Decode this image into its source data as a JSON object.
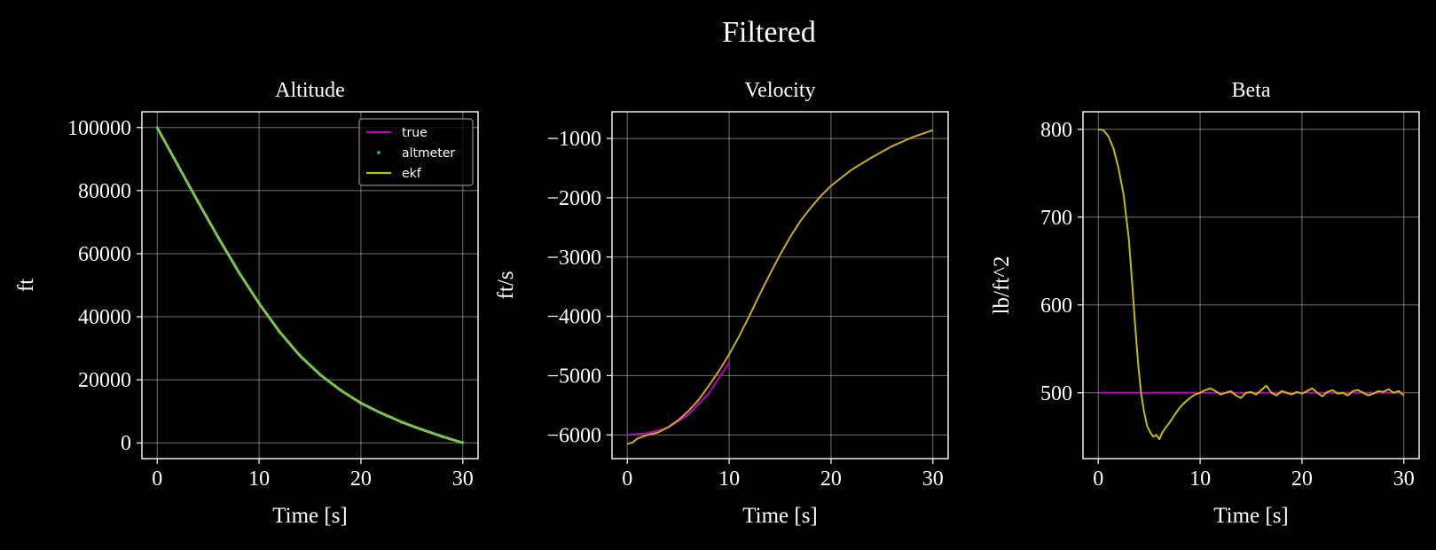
{
  "figure": {
    "title": "Filtered",
    "background": "#000000"
  },
  "colors": {
    "true": "#c000c0",
    "altmeter": "#17becf",
    "ekf": "#bfbf00",
    "grid": "#ffffff"
  },
  "legend": {
    "placement": "top-right",
    "entries": [
      {
        "label": "true",
        "style": "line",
        "color": "#c000c0"
      },
      {
        "label": "altmeter",
        "style": "marker",
        "color": "#17becf"
      },
      {
        "label": "ekf",
        "style": "line",
        "color": "#bfbf00"
      }
    ]
  },
  "chart_data": [
    {
      "type": "line",
      "title": "Altitude",
      "xlabel": "Time [s]",
      "ylabel": "ft",
      "xlim": [
        -1.5,
        31.5
      ],
      "ylim": [
        -5000,
        105000
      ],
      "xticks": [
        0,
        10,
        20,
        30
      ],
      "xtick_labels": [
        "0",
        "10",
        "20",
        "30"
      ],
      "yticks": [
        0,
        20000,
        40000,
        60000,
        80000,
        100000
      ],
      "ytick_labels": [
        "0",
        "20000",
        "40000",
        "60000",
        "80000",
        "100000"
      ],
      "grid": true,
      "legend": "top-right",
      "series": [
        {
          "name": "true",
          "style": "line",
          "color": "#c000c0",
          "x": [
            0,
            2,
            4,
            6,
            8,
            10,
            12,
            14,
            16,
            18,
            20,
            22,
            24,
            26,
            28,
            30
          ],
          "y": [
            100000,
            88200,
            76500,
            65100,
            54200,
            44200,
            35300,
            27700,
            21600,
            16700,
            12600,
            9400,
            6600,
            4200,
            2000,
            0
          ]
        },
        {
          "name": "altmeter",
          "style": "marker",
          "color": "#17becf",
          "x": [
            0,
            2,
            4,
            6,
            8,
            10,
            12,
            14,
            16,
            18,
            20,
            22,
            24,
            26,
            28,
            30
          ],
          "y": [
            100000,
            88300,
            76400,
            65200,
            54100,
            44300,
            35200,
            27800,
            21500,
            16800,
            12500,
            9500,
            6500,
            4300,
            1900,
            100
          ]
        },
        {
          "name": "ekf",
          "style": "line",
          "color": "#bfbf00",
          "x": [
            0,
            2,
            4,
            6,
            8,
            10,
            12,
            14,
            16,
            18,
            20,
            22,
            24,
            26,
            28,
            30
          ],
          "y": [
            100000,
            88200,
            76500,
            65100,
            54200,
            44200,
            35300,
            27700,
            21600,
            16700,
            12600,
            9400,
            6600,
            4200,
            2000,
            0
          ]
        }
      ]
    },
    {
      "type": "line",
      "title": "Velocity",
      "xlabel": "Time [s]",
      "ylabel": "ft/s",
      "xlim": [
        -1.5,
        31.5
      ],
      "ylim": [
        -6400,
        -550
      ],
      "xticks": [
        0,
        10,
        20,
        30
      ],
      "xtick_labels": [
        "0",
        "10",
        "20",
        "30"
      ],
      "yticks": [
        -6000,
        -5000,
        -4000,
        -3000,
        -2000,
        -1000
      ],
      "ytick_labels": [
        "−6000",
        "−5000",
        "−4000",
        "−3000",
        "−2000",
        "−1000"
      ],
      "grid": true,
      "series": [
        {
          "name": "true",
          "style": "line",
          "color": "#c000c0",
          "x": [
            0,
            2,
            4,
            6,
            8,
            10
          ],
          "y": [
            -6000,
            -5970,
            -5880,
            -5660,
            -5300,
            -4780
          ]
        },
        {
          "name": "ekf",
          "style": "line",
          "color": "#cfaa20",
          "x": [
            0,
            0.5,
            1,
            2,
            3,
            4,
            5,
            6,
            7,
            8,
            9,
            10,
            11,
            12,
            13,
            14,
            15,
            16,
            17,
            18,
            19,
            20,
            22,
            24,
            26,
            28,
            30
          ],
          "y": [
            -6150,
            -6130,
            -6060,
            -6000,
            -5960,
            -5870,
            -5750,
            -5600,
            -5410,
            -5170,
            -4920,
            -4640,
            -4330,
            -3990,
            -3630,
            -3290,
            -2960,
            -2660,
            -2390,
            -2170,
            -1970,
            -1800,
            -1530,
            -1320,
            -1130,
            -980,
            -860
          ]
        }
      ]
    },
    {
      "type": "line",
      "title": "Beta",
      "xlabel": "Time [s]",
      "ylabel": "lb/ft^2",
      "xlim": [
        -1.5,
        31.5
      ],
      "ylim": [
        425,
        820
      ],
      "xticks": [
        0,
        10,
        20,
        30
      ],
      "xtick_labels": [
        "0",
        "10",
        "20",
        "30"
      ],
      "yticks": [
        500,
        600,
        700,
        800
      ],
      "ytick_labels": [
        "500",
        "600",
        "700",
        "800"
      ],
      "grid": true,
      "series": [
        {
          "name": "true",
          "style": "line",
          "color": "#c000c0",
          "x": [
            0,
            30
          ],
          "y": [
            500,
            500
          ]
        },
        {
          "name": "ekf",
          "style": "line",
          "color": "#bfbf00",
          "x": [
            0,
            0.5,
            1,
            1.5,
            2,
            2.5,
            3,
            3.3,
            3.6,
            3.9,
            4.2,
            4.5,
            4.8,
            5.1,
            5.4,
            5.7,
            6.0,
            6.3,
            6.6,
            7,
            7.5,
            8,
            8.5,
            9,
            9.5,
            10,
            10.5,
            11,
            11.5,
            12,
            12.5,
            13,
            13.5,
            14,
            14.5,
            15,
            15.5,
            16,
            16.5,
            17,
            17.5,
            18,
            18.5,
            19,
            19.5,
            20,
            20.5,
            21,
            21.5,
            22,
            22.5,
            23,
            23.5,
            24,
            24.5,
            25,
            25.5,
            26,
            26.5,
            27,
            27.5,
            28,
            28.5,
            29,
            29.5,
            30
          ],
          "y": [
            800,
            799,
            792,
            778,
            755,
            725,
            675,
            630,
            580,
            535,
            500,
            478,
            462,
            455,
            450,
            452,
            447,
            455,
            460,
            466,
            475,
            483,
            489,
            494,
            498,
            500,
            503,
            505,
            502,
            498,
            500,
            502,
            497,
            494,
            500,
            501,
            498,
            503,
            508,
            500,
            497,
            502,
            500,
            498,
            501,
            499,
            502,
            505,
            500,
            496,
            501,
            503,
            499,
            500,
            497,
            502,
            503,
            500,
            497,
            499,
            502,
            501,
            504,
            500,
            502,
            497
          ]
        }
      ]
    }
  ]
}
